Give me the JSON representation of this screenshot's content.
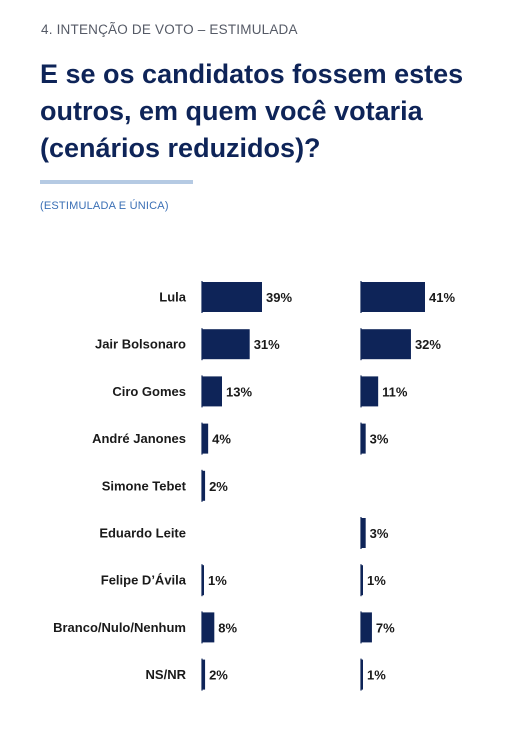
{
  "header": {
    "section": "4. INTENÇÃO DE VOTO – ESTIMULADA",
    "title": "E se os candidatos fossem estes outros, em quem você votaria (cenários reduzidos)?",
    "subtitle": "(ESTIMULADA E ÚNICA)"
  },
  "colors": {
    "bar": "#0e2458",
    "axis": "#0e2458",
    "title": "#0e2458",
    "rule": "#b5cae3",
    "subtitle": "#3a6fb5"
  },
  "chart_data": {
    "type": "bar",
    "orientation": "horizontal",
    "categories": [
      "Lula",
      "Jair Bolsonaro",
      "Ciro Gomes",
      "André Janones",
      "Simone Tebet",
      "Eduardo Leite",
      "Felipe D’Ávila",
      "Branco/Nulo/Nenhum",
      "NS/NR"
    ],
    "series": [
      {
        "values": [
          39,
          31,
          13,
          4,
          2,
          null,
          1,
          8,
          2
        ],
        "labels": [
          "39%",
          "31%",
          "13%",
          "4%",
          "2%",
          "",
          "1%",
          "8%",
          "2%"
        ]
      },
      {
        "values": [
          41,
          32,
          11,
          3,
          null,
          3,
          1,
          7,
          1
        ],
        "labels": [
          "41%",
          "32%",
          "11%",
          "3%",
          "",
          "3%",
          "1%",
          "7%",
          "1%"
        ]
      }
    ],
    "unit": "%",
    "xlim": [
      0,
      41
    ],
    "grid": false,
    "legend": "none"
  }
}
